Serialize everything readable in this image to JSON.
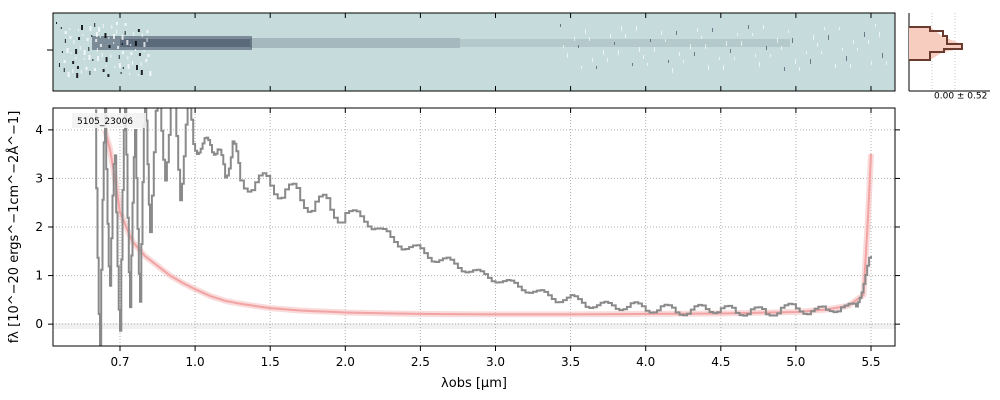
{
  "figure": {
    "object_id": "5105_23006",
    "hist_label": "0.00 ± 0.52",
    "colors": {
      "spec2d_background": "#c6dcdc",
      "spec2d_dark": "#1f2a44",
      "flux_line": "#8a8a8a",
      "model_line": "#f2a3a3",
      "model_band": "#f6c8c8",
      "hist_line": "#6b3a2e",
      "hist_fill": "#f6cdbf",
      "grid": "#b0b0b0"
    }
  },
  "chart_data": [
    {
      "type": "line",
      "title": "",
      "xlabel": "λobs [μm]",
      "ylabel": "fλ [10^−20 ergs^−1cm^−2Å^−1]",
      "ylim": [
        -0.45,
        4.45
      ],
      "x_scale": "sqrt-like wavelength axis",
      "x_ticks": [
        0.7,
        1.0,
        1.5,
        2.0,
        2.5,
        3.0,
        3.5,
        4.0,
        4.5,
        5.0,
        5.5
      ],
      "x_tick_labels": [
        "0.7",
        "1.0",
        "1.5",
        "2.0",
        "2.5",
        "3.0",
        "3.5",
        "4.0",
        "4.5",
        "5.0",
        "5.5"
      ],
      "y_ticks": [
        0,
        1,
        2,
        3,
        4
      ],
      "y_tick_labels": [
        "0",
        "1",
        "2",
        "3",
        "4"
      ],
      "grid": true,
      "series": [
        {
          "kind": "flux_steps",
          "x": [
            0.6,
            0.62,
            0.64,
            0.66,
            0.68,
            0.7,
            0.72,
            0.74,
            0.76,
            0.78,
            0.8,
            0.82,
            0.85,
            0.88,
            0.91,
            0.94,
            0.97,
            1.0,
            1.05,
            1.1,
            1.15,
            1.2,
            1.25,
            1.3,
            1.4,
            1.5,
            1.6,
            1.7,
            1.8,
            1.9,
            2.0,
            2.1,
            2.2,
            2.3,
            2.4,
            2.5,
            2.6,
            2.7,
            2.8,
            2.9,
            3.0,
            3.1,
            3.2,
            3.3,
            3.4,
            3.5,
            3.6,
            3.7,
            3.8,
            3.9,
            4.0,
            4.1,
            4.2,
            4.3,
            4.4,
            4.5,
            4.6,
            4.7,
            4.8,
            4.9,
            5.0,
            5.1,
            5.2,
            5.3,
            5.4,
            5.45,
            5.5
          ],
          "values": [
            4.4,
            -0.4,
            4.3,
            1.0,
            3.2,
            0.2,
            4.4,
            0.8,
            3.5,
            1.0,
            4.4,
            2.5,
            4.4,
            3.6,
            4.3,
            3.2,
            4.1,
            3.8,
            3.5,
            3.9,
            3.4,
            3.2,
            3.6,
            3.1,
            2.8,
            2.95,
            2.7,
            2.6,
            2.5,
            2.35,
            2.3,
            2.2,
            2.0,
            1.75,
            1.6,
            1.5,
            1.35,
            1.25,
            1.15,
            1.0,
            0.95,
            0.8,
            0.75,
            0.6,
            0.55,
            0.5,
            0.45,
            0.35,
            0.4,
            0.35,
            0.35,
            0.3,
            0.3,
            0.25,
            0.35,
            0.3,
            0.25,
            0.3,
            0.2,
            0.35,
            0.3,
            0.3,
            0.25,
            0.4,
            0.3,
            0.9,
            1.4
          ]
        },
        {
          "kind": "model",
          "x": [
            0.64,
            0.66,
            0.68,
            0.7,
            0.75,
            0.8,
            0.85,
            0.9,
            0.95,
            1.0,
            1.1,
            1.2,
            1.3,
            1.5,
            1.7,
            2.0,
            2.5,
            3.0,
            3.5,
            4.0,
            4.5,
            5.0,
            5.2,
            5.35,
            5.45,
            5.48,
            5.5
          ],
          "values": [
            4.0,
            3.6,
            3.0,
            2.3,
            1.7,
            1.4,
            1.2,
            1.0,
            0.85,
            0.72,
            0.58,
            0.48,
            0.42,
            0.33,
            0.28,
            0.24,
            0.21,
            0.2,
            0.2,
            0.21,
            0.22,
            0.25,
            0.3,
            0.38,
            0.6,
            2.2,
            3.5
          ]
        }
      ]
    }
  ]
}
